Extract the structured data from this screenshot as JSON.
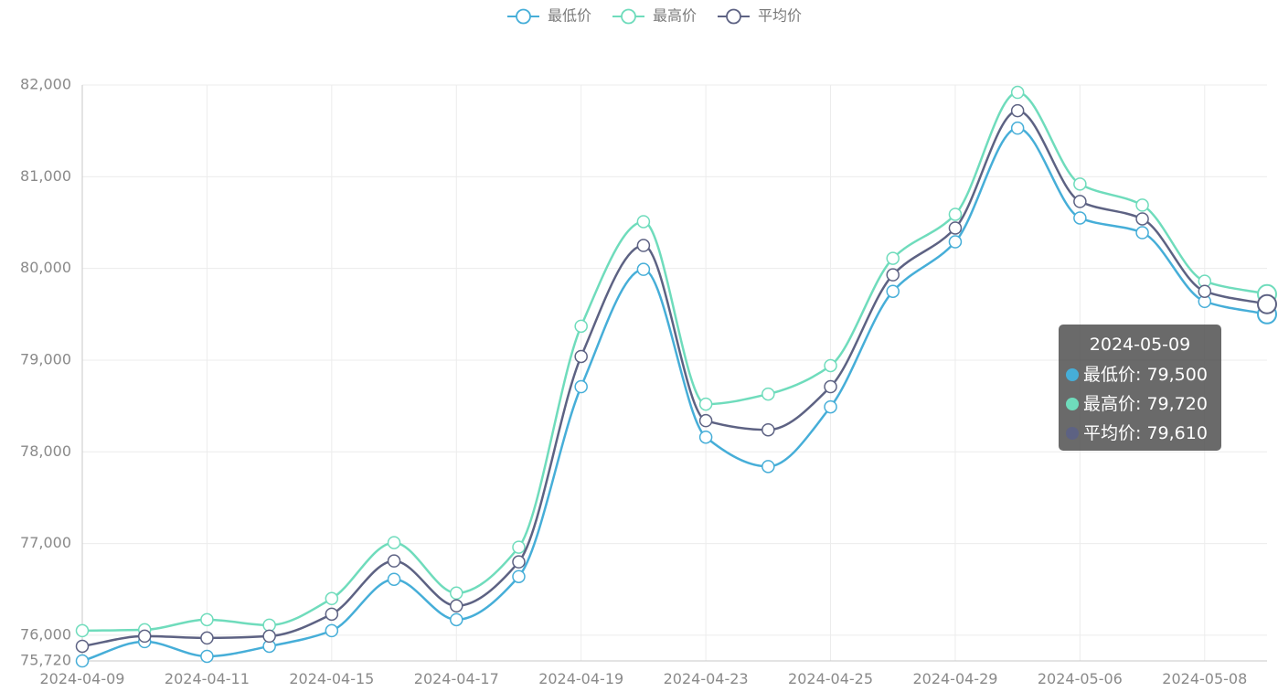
{
  "chart_data": {
    "type": "line",
    "smooth": true,
    "x": [
      "2024-04-09",
      "2024-04-10",
      "2024-04-11",
      "2024-04-12",
      "2024-04-15",
      "2024-04-16",
      "2024-04-17",
      "2024-04-18",
      "2024-04-19",
      "2024-04-22",
      "2024-04-23",
      "2024-04-24",
      "2024-04-25",
      "2024-04-26",
      "2024-04-29",
      "2024-04-30",
      "2024-05-06",
      "2024-05-07",
      "2024-05-08",
      "2024-05-09"
    ],
    "x_tick_labels": [
      "2024-04-09",
      "2024-04-11",
      "2024-04-15",
      "2024-04-17",
      "2024-04-19",
      "2024-04-23",
      "2024-04-25",
      "2024-04-29",
      "2024-05-06",
      "2024-05-08"
    ],
    "series": [
      {
        "name": "最低价",
        "color": "#46aed8",
        "values": [
          75720,
          75930,
          75770,
          75880,
          76050,
          76610,
          76170,
          76640,
          78710,
          79990,
          78160,
          77840,
          78490,
          79750,
          80290,
          81530,
          80550,
          80390,
          79640,
          79500
        ]
      },
      {
        "name": "最高价",
        "color": "#6fdcbc",
        "values": [
          76050,
          76060,
          76170,
          76110,
          76400,
          77010,
          76460,
          76960,
          79370,
          80510,
          78520,
          78630,
          78940,
          80110,
          80590,
          81920,
          80920,
          80690,
          79860,
          79720
        ]
      },
      {
        "name": "平均价",
        "color": "#5d6283",
        "values": [
          75880,
          75990,
          75970,
          75990,
          76230,
          76810,
          76320,
          76800,
          79040,
          80250,
          78340,
          78240,
          78710,
          79930,
          80440,
          81720,
          80730,
          80540,
          79750,
          79610
        ]
      }
    ],
    "y_tick_labels": [
      "75,720",
      "76,000",
      "77,000",
      "78,000",
      "79,000",
      "80,000",
      "81,000",
      "82,000"
    ],
    "ylim": [
      75720,
      82000
    ],
    "grid": true,
    "legend_position": "top-center",
    "tooltip": {
      "title": "2024-05-09",
      "rows": [
        {
          "label": "最低价: 79,500",
          "color": "#46aed8"
        },
        {
          "label": "最高价: 79,720",
          "color": "#6fdcbc"
        },
        {
          "label": "平均价: 79,610",
          "color": "#5d6283"
        }
      ]
    }
  }
}
